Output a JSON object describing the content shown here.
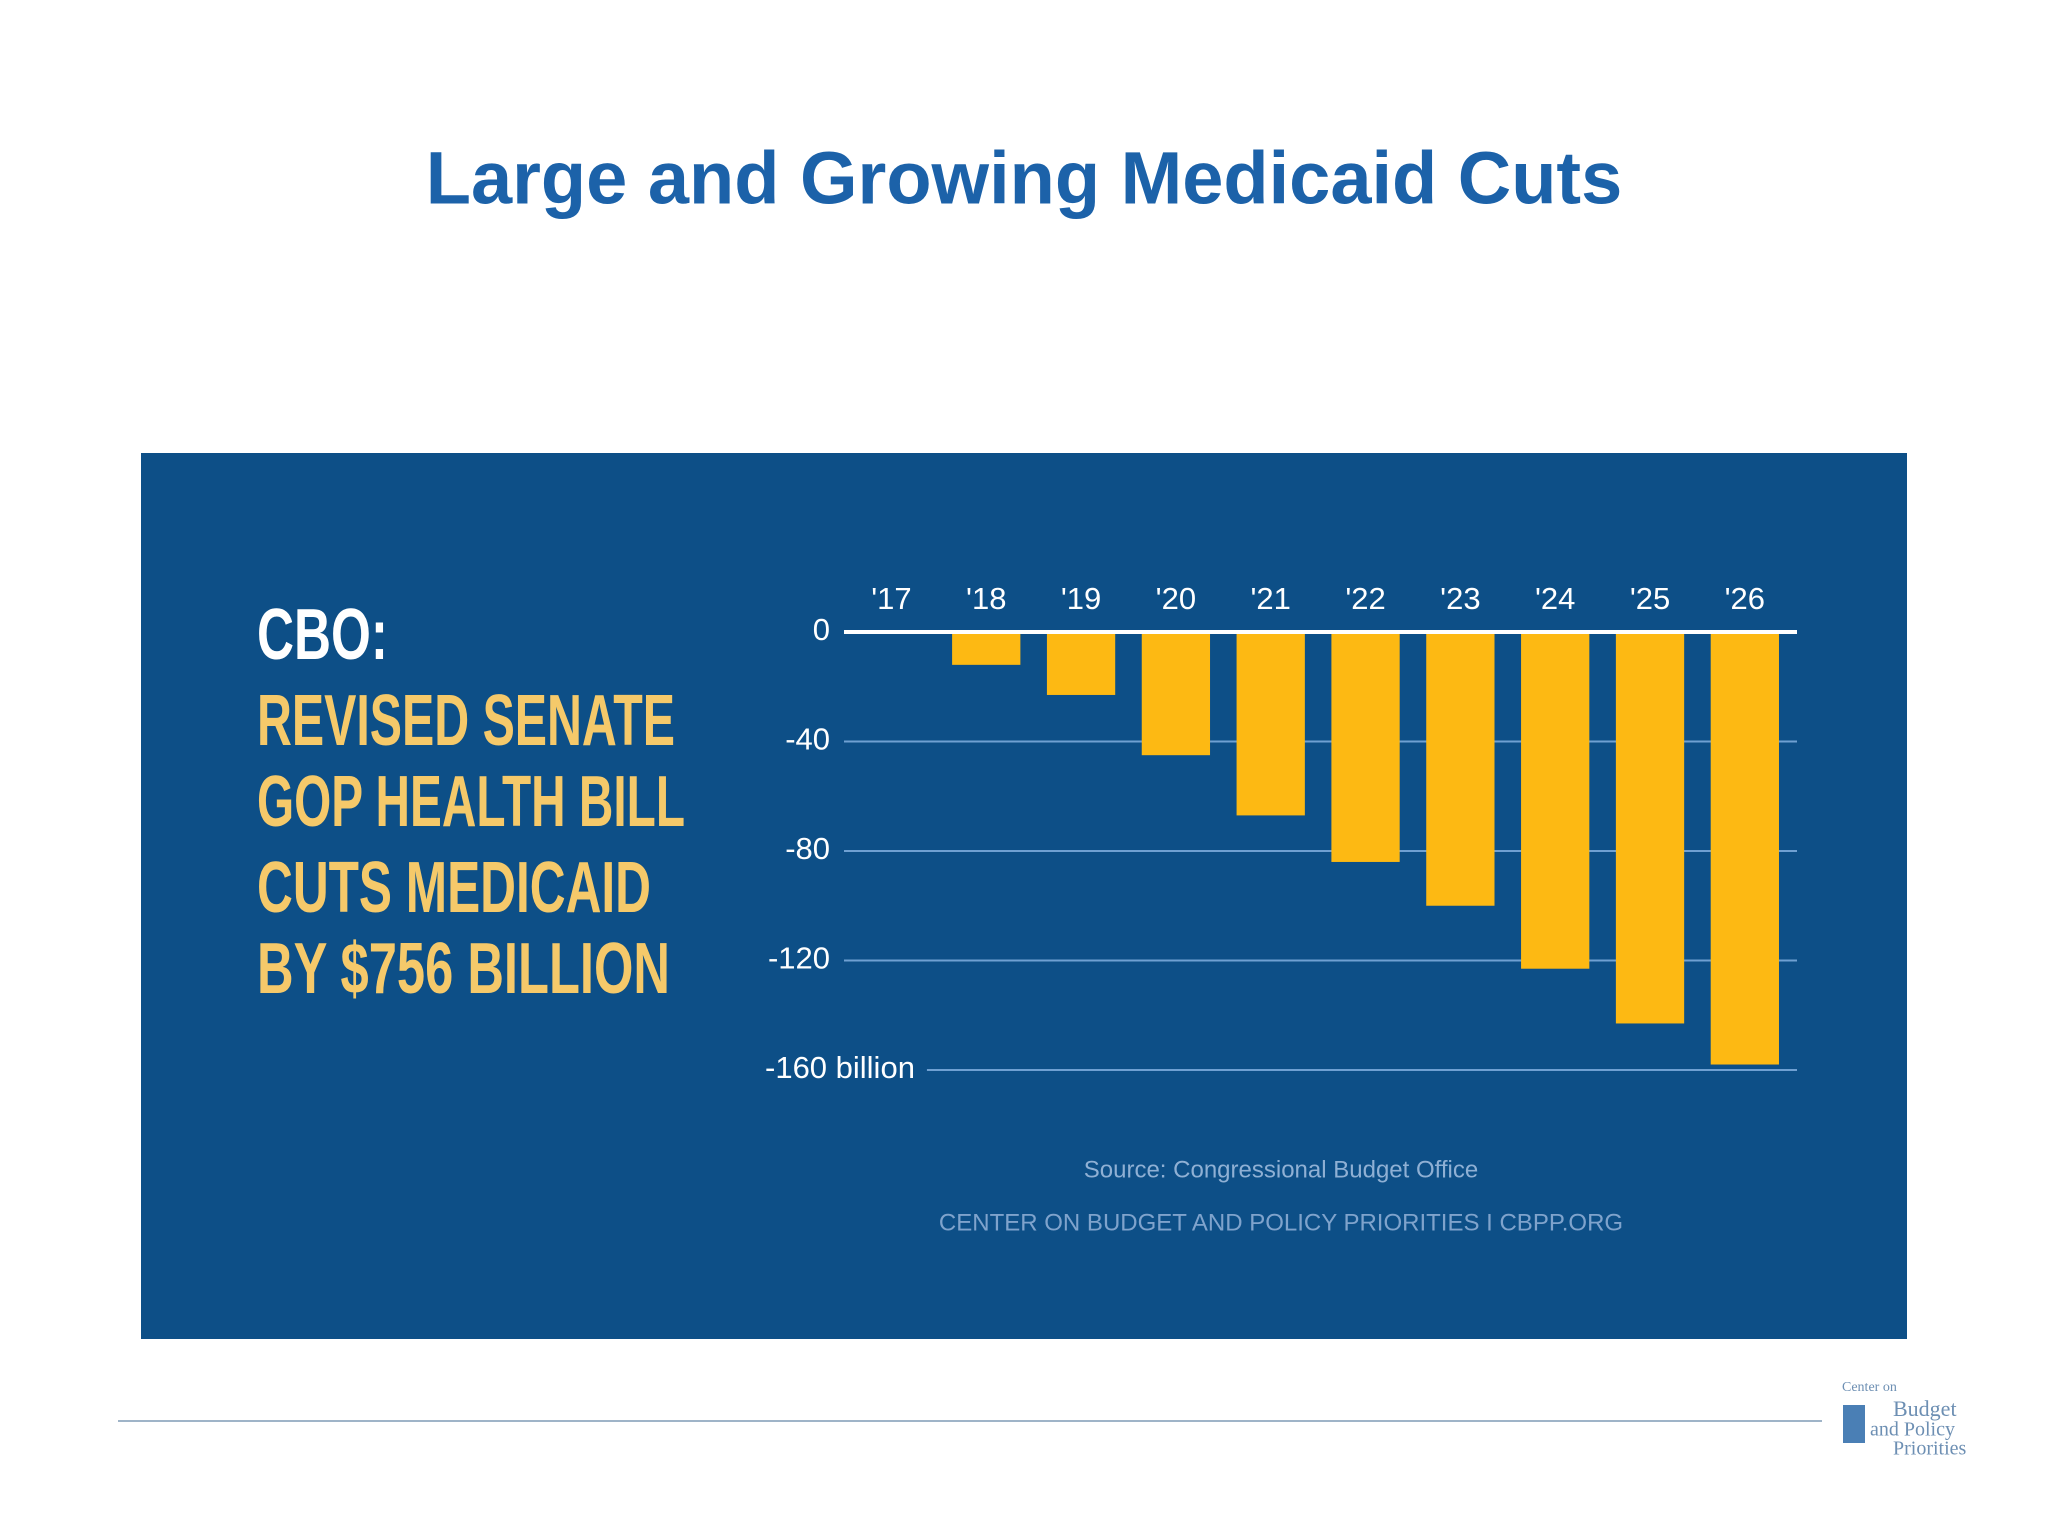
{
  "slide_title": "Large and Growing Medicaid Cuts",
  "headline": [
    "CBO:",
    "REVISED SENATE",
    "GOP HEALTH BILL",
    "CUTS MEDICAID",
    "BY $756 BILLION"
  ],
  "source": "Source: Congressional Budget Office",
  "credit": "CENTER ON BUDGET AND POLICY PRIORITIES I CBPP.ORG",
  "logo": [
    "Center on",
    "Budget",
    "and Policy",
    "Priorities"
  ],
  "chart_data": {
    "type": "bar",
    "categories": [
      "'17",
      "'18",
      "'19",
      "'20",
      "'21",
      "'22",
      "'23",
      "'24",
      "'25",
      "'26"
    ],
    "values": [
      0,
      -12,
      -23,
      -45,
      -67,
      -84,
      -100,
      -123,
      -143,
      -158
    ],
    "color": "#fdb913",
    "ylim": [
      -160,
      0
    ],
    "yticks": [
      0,
      -40,
      -80,
      -120,
      {
        "value": -160,
        "label": "-160 billion"
      }
    ],
    "grid": true
  }
}
